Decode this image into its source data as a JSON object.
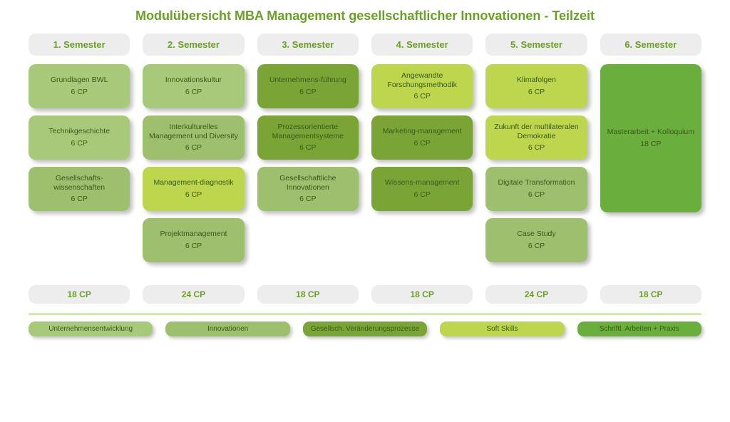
{
  "title": "Modulübersicht MBA Management gesellschaftlicher Innovationen - Teilzeit",
  "colors": {
    "cat_unternehmen": "#a9c97a",
    "cat_innovationen": "#9dbf6e",
    "cat_gesellsch": "#7aa536",
    "cat_softskills": "#bdd64d",
    "cat_schriftl": "#6aae3e",
    "header_bg": "#ededed",
    "accent_text": "#6aa026"
  },
  "semesters": [
    {
      "label": "1. Semester",
      "cp_total": "18 CP",
      "modules": [
        {
          "name": "Grundlagen BWL",
          "cp": "6 CP",
          "cat": "unternehmen"
        },
        {
          "name": "Technikgeschichte",
          "cp": "6 CP",
          "cat": "unternehmen"
        },
        {
          "name": "Gesellschafts-wissenschaften",
          "cp": "6 CP",
          "cat": "innovationen"
        }
      ]
    },
    {
      "label": "2. Semester",
      "cp_total": "24 CP",
      "modules": [
        {
          "name": "Innovationskultur",
          "cp": "6 CP",
          "cat": "unternehmen"
        },
        {
          "name": "Interkulturelles Management und Diversity",
          "cp": "6 CP",
          "cat": "innovationen"
        },
        {
          "name": "Management-diagnostik",
          "cp": "6 CP",
          "cat": "softskills"
        },
        {
          "name": "Projektmanagement",
          "cp": "6 CP",
          "cat": "innovationen"
        }
      ]
    },
    {
      "label": "3. Semester",
      "cp_total": "18 CP",
      "modules": [
        {
          "name": "Unternehmens-führung",
          "cp": "6 CP",
          "cat": "gesellsch"
        },
        {
          "name": "Prozessorientierte Managementsysteme",
          "cp": "6 CP",
          "cat": "gesellsch"
        },
        {
          "name": "Gesellschaftliche Innovationen",
          "cp": "6 CP",
          "cat": "innovationen"
        }
      ]
    },
    {
      "label": "4. Semester",
      "cp_total": "18 CP",
      "modules": [
        {
          "name": "Angewandte Forschungsmethodik",
          "cp": "6 CP",
          "cat": "softskills"
        },
        {
          "name": "Marketing-management",
          "cp": "6 CP",
          "cat": "gesellsch"
        },
        {
          "name": "Wissens-management",
          "cp": "6 CP",
          "cat": "gesellsch"
        }
      ]
    },
    {
      "label": "5. Semester",
      "cp_total": "24 CP",
      "modules": [
        {
          "name": "Klimafolgen",
          "cp": "6 CP",
          "cat": "softskills"
        },
        {
          "name": "Zukunft der multilateralen Demokratie",
          "cp": "6 CP",
          "cat": "softskills"
        },
        {
          "name": "Digitale Transformation",
          "cp": "6 CP",
          "cat": "innovationen"
        },
        {
          "name": "Case Study",
          "cp": "6 CP",
          "cat": "innovationen"
        }
      ]
    },
    {
      "label": "6. Semester",
      "cp_total": "18 CP",
      "modules": [
        {
          "name": "Masterarbeit + Kolloquium",
          "cp": "18 CP",
          "cat": "schriftl",
          "tall": true
        }
      ]
    }
  ],
  "legend": [
    {
      "label": "Unternehmensentwicklung",
      "cat": "unternehmen"
    },
    {
      "label": "Innovationen",
      "cat": "innovationen"
    },
    {
      "label": "Gesellsch. Veränderungsprozesse",
      "cat": "gesellsch"
    },
    {
      "label": "Soft Skills",
      "cat": "softskills"
    },
    {
      "label": "Schriftl. Arbeiten + Praxis",
      "cat": "schriftl"
    }
  ]
}
